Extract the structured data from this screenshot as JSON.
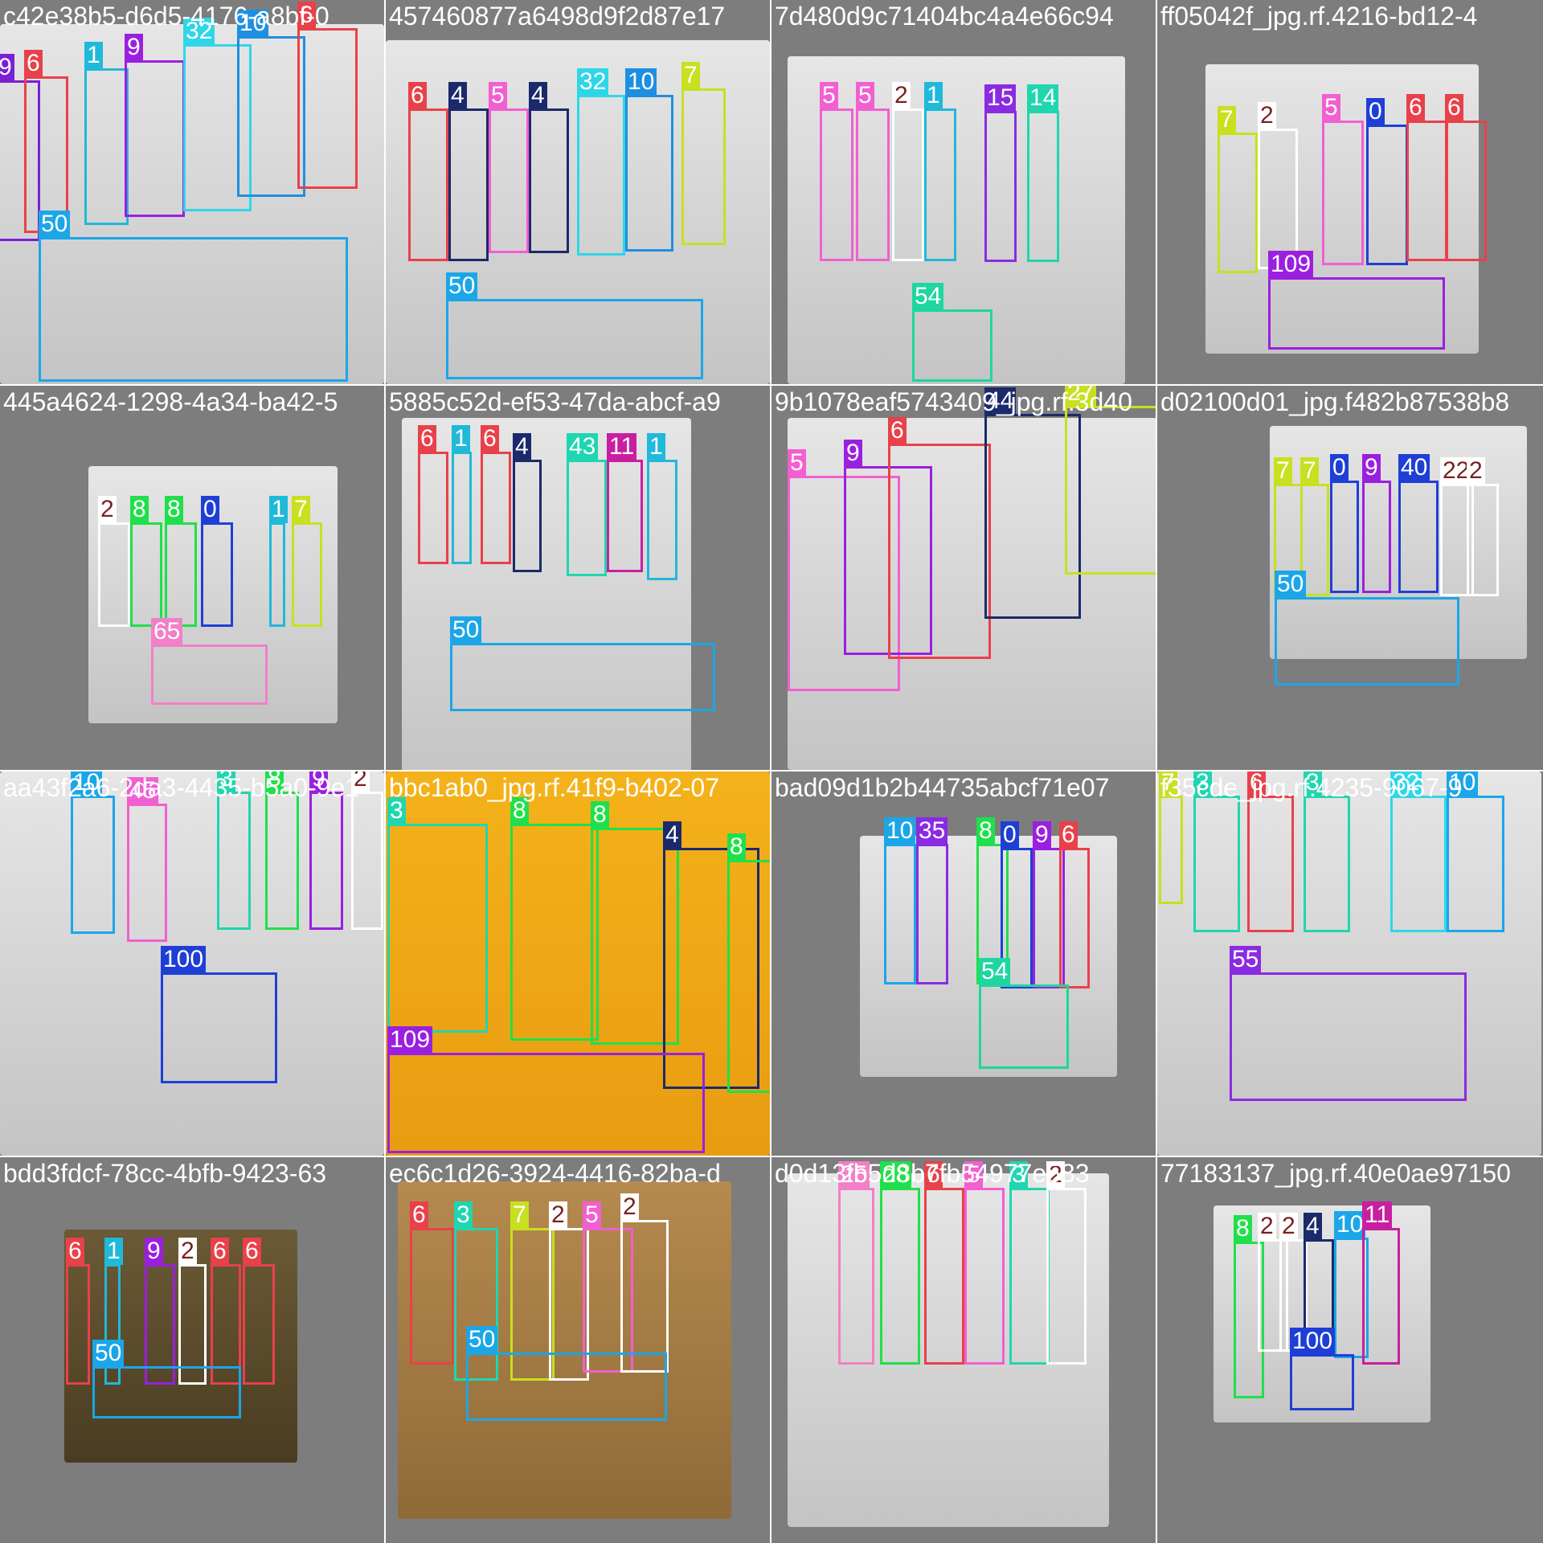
{
  "tiles": [
    {
      "title": "c42e38b5-d6d5-4176-a8bf-0",
      "plate": "white",
      "boxes": [
        {
          "label": "9",
          "color": "#7a1fd6"
        },
        {
          "label": "6",
          "color": "#e8414a"
        },
        {
          "label": "1",
          "color": "#1fb9d9"
        },
        {
          "label": "9",
          "color": "#9b1fe0"
        },
        {
          "label": "32",
          "color": "#2fd6e8"
        },
        {
          "label": "10",
          "color": "#1e8fe0"
        },
        {
          "label": "6",
          "color": "#e8414a"
        },
        {
          "label": "50",
          "color": "#1ba6e8"
        }
      ]
    },
    {
      "title": "457460877a6498d9f2d87e17",
      "plate": "white",
      "boxes": [
        {
          "label": "6",
          "color": "#e8414a"
        },
        {
          "label": "4",
          "color": "#1b2a6b"
        },
        {
          "label": "5",
          "color": "#f25fd0"
        },
        {
          "label": "4",
          "color": "#1b2a6b"
        },
        {
          "label": "32",
          "color": "#2fd6e8"
        },
        {
          "label": "10",
          "color": "#1e8fe0"
        },
        {
          "label": "7",
          "color": "#c8e01f"
        },
        {
          "label": "50",
          "color": "#1ba6e8"
        }
      ]
    },
    {
      "title": "7d480d9c71404bc4a4e66c94",
      "plate": "white",
      "boxes": [
        {
          "label": "5",
          "color": "#f25fd0"
        },
        {
          "label": "5",
          "color": "#f25fd0"
        },
        {
          "label": "2",
          "color": "#ffffff"
        },
        {
          "label": "1",
          "color": "#1fb9d9"
        },
        {
          "label": "15",
          "color": "#8a2be2"
        },
        {
          "label": "14",
          "color": "#1fd6b0"
        },
        {
          "label": "54",
          "color": "#1fd6a0"
        }
      ]
    },
    {
      "title": "ff05042f_jpg.rf.4216-bd12-4",
      "plate": "white",
      "boxes": [
        {
          "label": "7",
          "color": "#c8e01f"
        },
        {
          "label": "2",
          "color": "#ffffff"
        },
        {
          "label": "5",
          "color": "#f25fd0"
        },
        {
          "label": "0",
          "color": "#1e3fd6"
        },
        {
          "label": "6",
          "color": "#e8414a"
        },
        {
          "label": "6",
          "color": "#e8414a"
        },
        {
          "label": "109",
          "color": "#9b1fe0"
        }
      ]
    },
    {
      "title": "445a4624-1298-4a34-ba42-5",
      "plate": "white",
      "boxes": [
        {
          "label": "2",
          "color": "#ffffff"
        },
        {
          "label": "8",
          "color": "#1fe04a"
        },
        {
          "label": "8",
          "color": "#1fe04a"
        },
        {
          "label": "0",
          "color": "#1e3fd6"
        },
        {
          "label": "1",
          "color": "#1fb9d9"
        },
        {
          "label": "7",
          "color": "#c8e01f"
        },
        {
          "label": "65",
          "color": "#f27fc8"
        }
      ]
    },
    {
      "title": "5885c52d-ef53-47da-abcf-a9",
      "plate": "white",
      "boxes": [
        {
          "label": "6",
          "color": "#e8414a"
        },
        {
          "label": "1",
          "color": "#1fb9d9"
        },
        {
          "label": "6",
          "color": "#e8414a"
        },
        {
          "label": "4",
          "color": "#1b2a6b"
        },
        {
          "label": "43",
          "color": "#1fd6b0"
        },
        {
          "label": "11",
          "color": "#c81fa0"
        },
        {
          "label": "1",
          "color": "#1fb9d9"
        },
        {
          "label": "50",
          "color": "#1ba6e8"
        }
      ]
    },
    {
      "title": "9b1078eaf5743409_jpg.rf.3d40",
      "plate": "white",
      "boxes": [
        {
          "label": "5",
          "color": "#f25fd0"
        },
        {
          "label": "9",
          "color": "#9b1fe0"
        },
        {
          "label": "6",
          "color": "#e8414a"
        },
        {
          "label": "44",
          "color": "#1b2a6b"
        },
        {
          "label": "27",
          "color": "#c8e01f"
        }
      ]
    },
    {
      "title": "d02100d01_jpg.f482b87538b8",
      "plate": "white",
      "boxes": [
        {
          "label": "7",
          "color": "#c8e01f"
        },
        {
          "label": "7",
          "color": "#c8e01f"
        },
        {
          "label": "0",
          "color": "#1e3fd6"
        },
        {
          "label": "9",
          "color": "#9b1fe0"
        },
        {
          "label": "40",
          "color": "#1e3fd6"
        },
        {
          "label": "22",
          "color": "#ffffff"
        },
        {
          "label": "2",
          "color": "#ffffff"
        },
        {
          "label": "50",
          "color": "#1ba6e8"
        }
      ]
    },
    {
      "title": "aa43f2a6-2da3-4435-b5a0-9e1",
      "plate": "white",
      "boxes": [
        {
          "label": "10",
          "color": "#1ba6e8"
        },
        {
          "label": "45",
          "color": "#f25fd0"
        },
        {
          "label": "3",
          "color": "#1fd6b0"
        },
        {
          "label": "8",
          "color": "#1fe04a"
        },
        {
          "label": "9",
          "color": "#9b1fe0"
        },
        {
          "label": "2",
          "color": "#ffffff"
        },
        {
          "label": "100",
          "color": "#1e3fd6"
        }
      ]
    },
    {
      "title": "bbc1ab0_jpg.rf.41f9-b402-07",
      "plate": "yellow",
      "boxes": [
        {
          "label": "3",
          "color": "#1fd6b0"
        },
        {
          "label": "8",
          "color": "#1fe04a"
        },
        {
          "label": "8",
          "color": "#1fe04a"
        },
        {
          "label": "4",
          "color": "#1b2a6b"
        },
        {
          "label": "8",
          "color": "#1fe04a"
        },
        {
          "label": "109",
          "color": "#9b1fe0"
        }
      ]
    },
    {
      "title": "bad09d1b2b44735abcf71e07",
      "plate": "white",
      "boxes": [
        {
          "label": "10",
          "color": "#1ba6e8"
        },
        {
          "label": "35",
          "color": "#8a2be2"
        },
        {
          "label": "8",
          "color": "#1fe04a"
        },
        {
          "label": "0",
          "color": "#1e3fd6"
        },
        {
          "label": "9",
          "color": "#9b1fe0"
        },
        {
          "label": "6",
          "color": "#e8414a"
        },
        {
          "label": "54",
          "color": "#1fd6a0"
        }
      ]
    },
    {
      "title": "f35cde_jpg.rf.4235-9067-9",
      "plate": "white",
      "boxes": [
        {
          "label": "7",
          "color": "#c8e01f"
        },
        {
          "label": "3",
          "color": "#1fd6b0"
        },
        {
          "label": "6",
          "color": "#e8414a"
        },
        {
          "label": "3",
          "color": "#1fd6b0"
        },
        {
          "label": "32",
          "color": "#2fd6e8"
        },
        {
          "label": "10",
          "color": "#1ba6e8"
        },
        {
          "label": "55",
          "color": "#8a2be2"
        }
      ]
    },
    {
      "title": "bdd3fdcf-78cc-4bfb-9423-63",
      "plate": "brown",
      "boxes": [
        {
          "label": "6",
          "color": "#e8414a"
        },
        {
          "label": "1",
          "color": "#1fb9d9"
        },
        {
          "label": "9",
          "color": "#9b1fe0"
        },
        {
          "label": "2",
          "color": "#ffffff"
        },
        {
          "label": "6",
          "color": "#e8414a"
        },
        {
          "label": "6",
          "color": "#e8414a"
        },
        {
          "label": "50",
          "color": "#1ba6e8"
        }
      ]
    },
    {
      "title": "ec6c1d26-3924-4416-82ba-d",
      "plate": "tan",
      "boxes": [
        {
          "label": "6",
          "color": "#e8414a"
        },
        {
          "label": "3",
          "color": "#1fd6b0"
        },
        {
          "label": "7",
          "color": "#c8e01f"
        },
        {
          "label": "2",
          "color": "#ffffff"
        },
        {
          "label": "5",
          "color": "#f25fd0"
        },
        {
          "label": "2",
          "color": "#ffffff"
        },
        {
          "label": "50",
          "color": "#1ba6e8"
        }
      ]
    },
    {
      "title": "d0d13fb5d8b7fb54977e583",
      "plate": "white",
      "boxes": [
        {
          "label": "25",
          "color": "#f27fc8"
        },
        {
          "label": "28",
          "color": "#1fe04a"
        },
        {
          "label": "6",
          "color": "#e8414a"
        },
        {
          "label": "5",
          "color": "#f25fd0"
        },
        {
          "label": "3",
          "color": "#1fd6b0"
        },
        {
          "label": "2",
          "color": "#ffffff"
        }
      ]
    },
    {
      "title": "77183137_jpg.rf.40e0ae97150",
      "plate": "white",
      "boxes": [
        {
          "label": "8",
          "color": "#1fe04a"
        },
        {
          "label": "2",
          "color": "#ffffff"
        },
        {
          "label": "2",
          "color": "#ffffff"
        },
        {
          "label": "4",
          "color": "#1b2a6b"
        },
        {
          "label": "10",
          "color": "#1ba6e8"
        },
        {
          "label": "11",
          "color": "#c81fa0"
        },
        {
          "label": "100",
          "color": "#1e3fd6"
        }
      ]
    }
  ]
}
